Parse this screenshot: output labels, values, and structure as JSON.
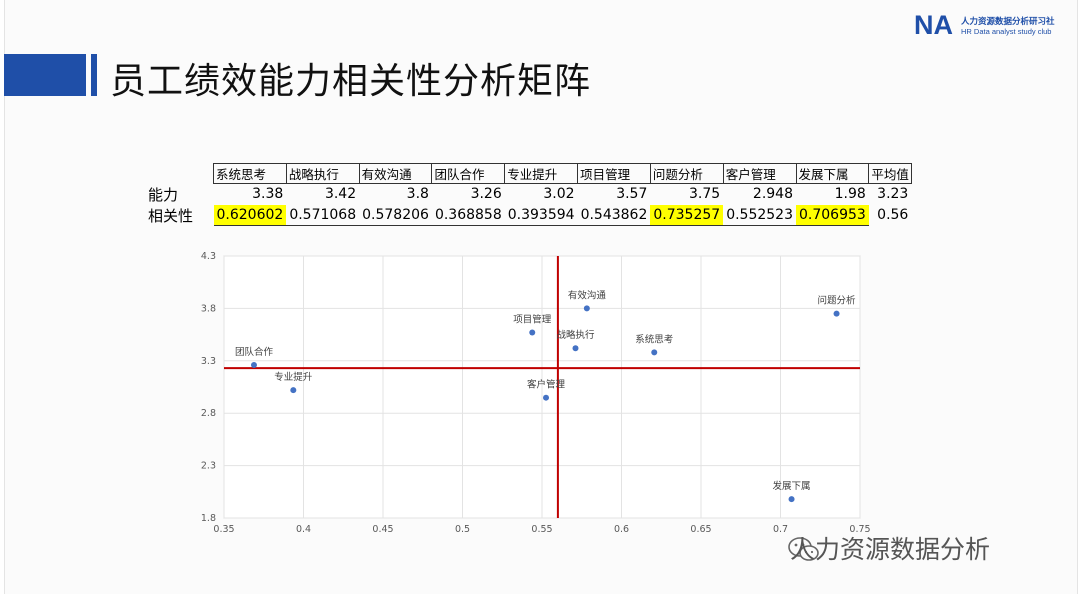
{
  "slide": {
    "title": "员工绩效能力相关性分析矩阵",
    "logo": {
      "mark": "NA",
      "cn": "人力资源数据分析研习社",
      "en": "HR Data analyst study club"
    },
    "watermark": "人力资源数据分析"
  },
  "table": {
    "headers": [
      "系统思考",
      "战略执行",
      "有效沟通",
      "团队合作",
      "专业提升",
      "项目管理",
      "问题分析",
      "客户管理",
      "发展下属",
      "平均值"
    ],
    "row_labels": [
      "能力",
      "相关性"
    ],
    "ability": [
      "3.38",
      "3.42",
      "3.8",
      "3.26",
      "3.02",
      "3.57",
      "3.75",
      "2.948",
      "1.98",
      "3.23"
    ],
    "correlation": [
      "0.620602",
      "0.571068",
      "0.578206",
      "0.368858",
      "0.393594",
      "0.543862",
      "0.735257",
      "0.552523",
      "0.706953",
      "0.56"
    ],
    "highlighted": [
      "系统思考",
      "问题分析",
      "发展下属"
    ],
    "highlight_color": "#ffff00"
  },
  "chart_data": {
    "type": "scatter",
    "points": [
      {
        "label": "系统思考",
        "x": 0.620602,
        "y": 3.38
      },
      {
        "label": "战略执行",
        "x": 0.571068,
        "y": 3.42
      },
      {
        "label": "有效沟通",
        "x": 0.578206,
        "y": 3.8
      },
      {
        "label": "团队合作",
        "x": 0.368858,
        "y": 3.26
      },
      {
        "label": "专业提升",
        "x": 0.393594,
        "y": 3.02
      },
      {
        "label": "项目管理",
        "x": 0.543862,
        "y": 3.57
      },
      {
        "label": "问题分析",
        "x": 0.735257,
        "y": 3.75
      },
      {
        "label": "客户管理",
        "x": 0.552523,
        "y": 2.948
      },
      {
        "label": "发展下属",
        "x": 0.706953,
        "y": 1.98
      }
    ],
    "xlim": [
      0.35,
      0.75
    ],
    "ylim": [
      1.8,
      4.3
    ],
    "x_ticks": [
      "0.35",
      "0.4",
      "0.45",
      "0.5",
      "0.55",
      "0.6",
      "0.65",
      "0.7",
      "0.75"
    ],
    "y_ticks": [
      "1.8",
      "2.3",
      "2.8",
      "3.3",
      "3.8",
      "4.3"
    ],
    "reference_lines": {
      "x": 0.56,
      "y": 3.23,
      "color": "#c00000"
    },
    "point_color": "#4472c4",
    "grid": true
  }
}
